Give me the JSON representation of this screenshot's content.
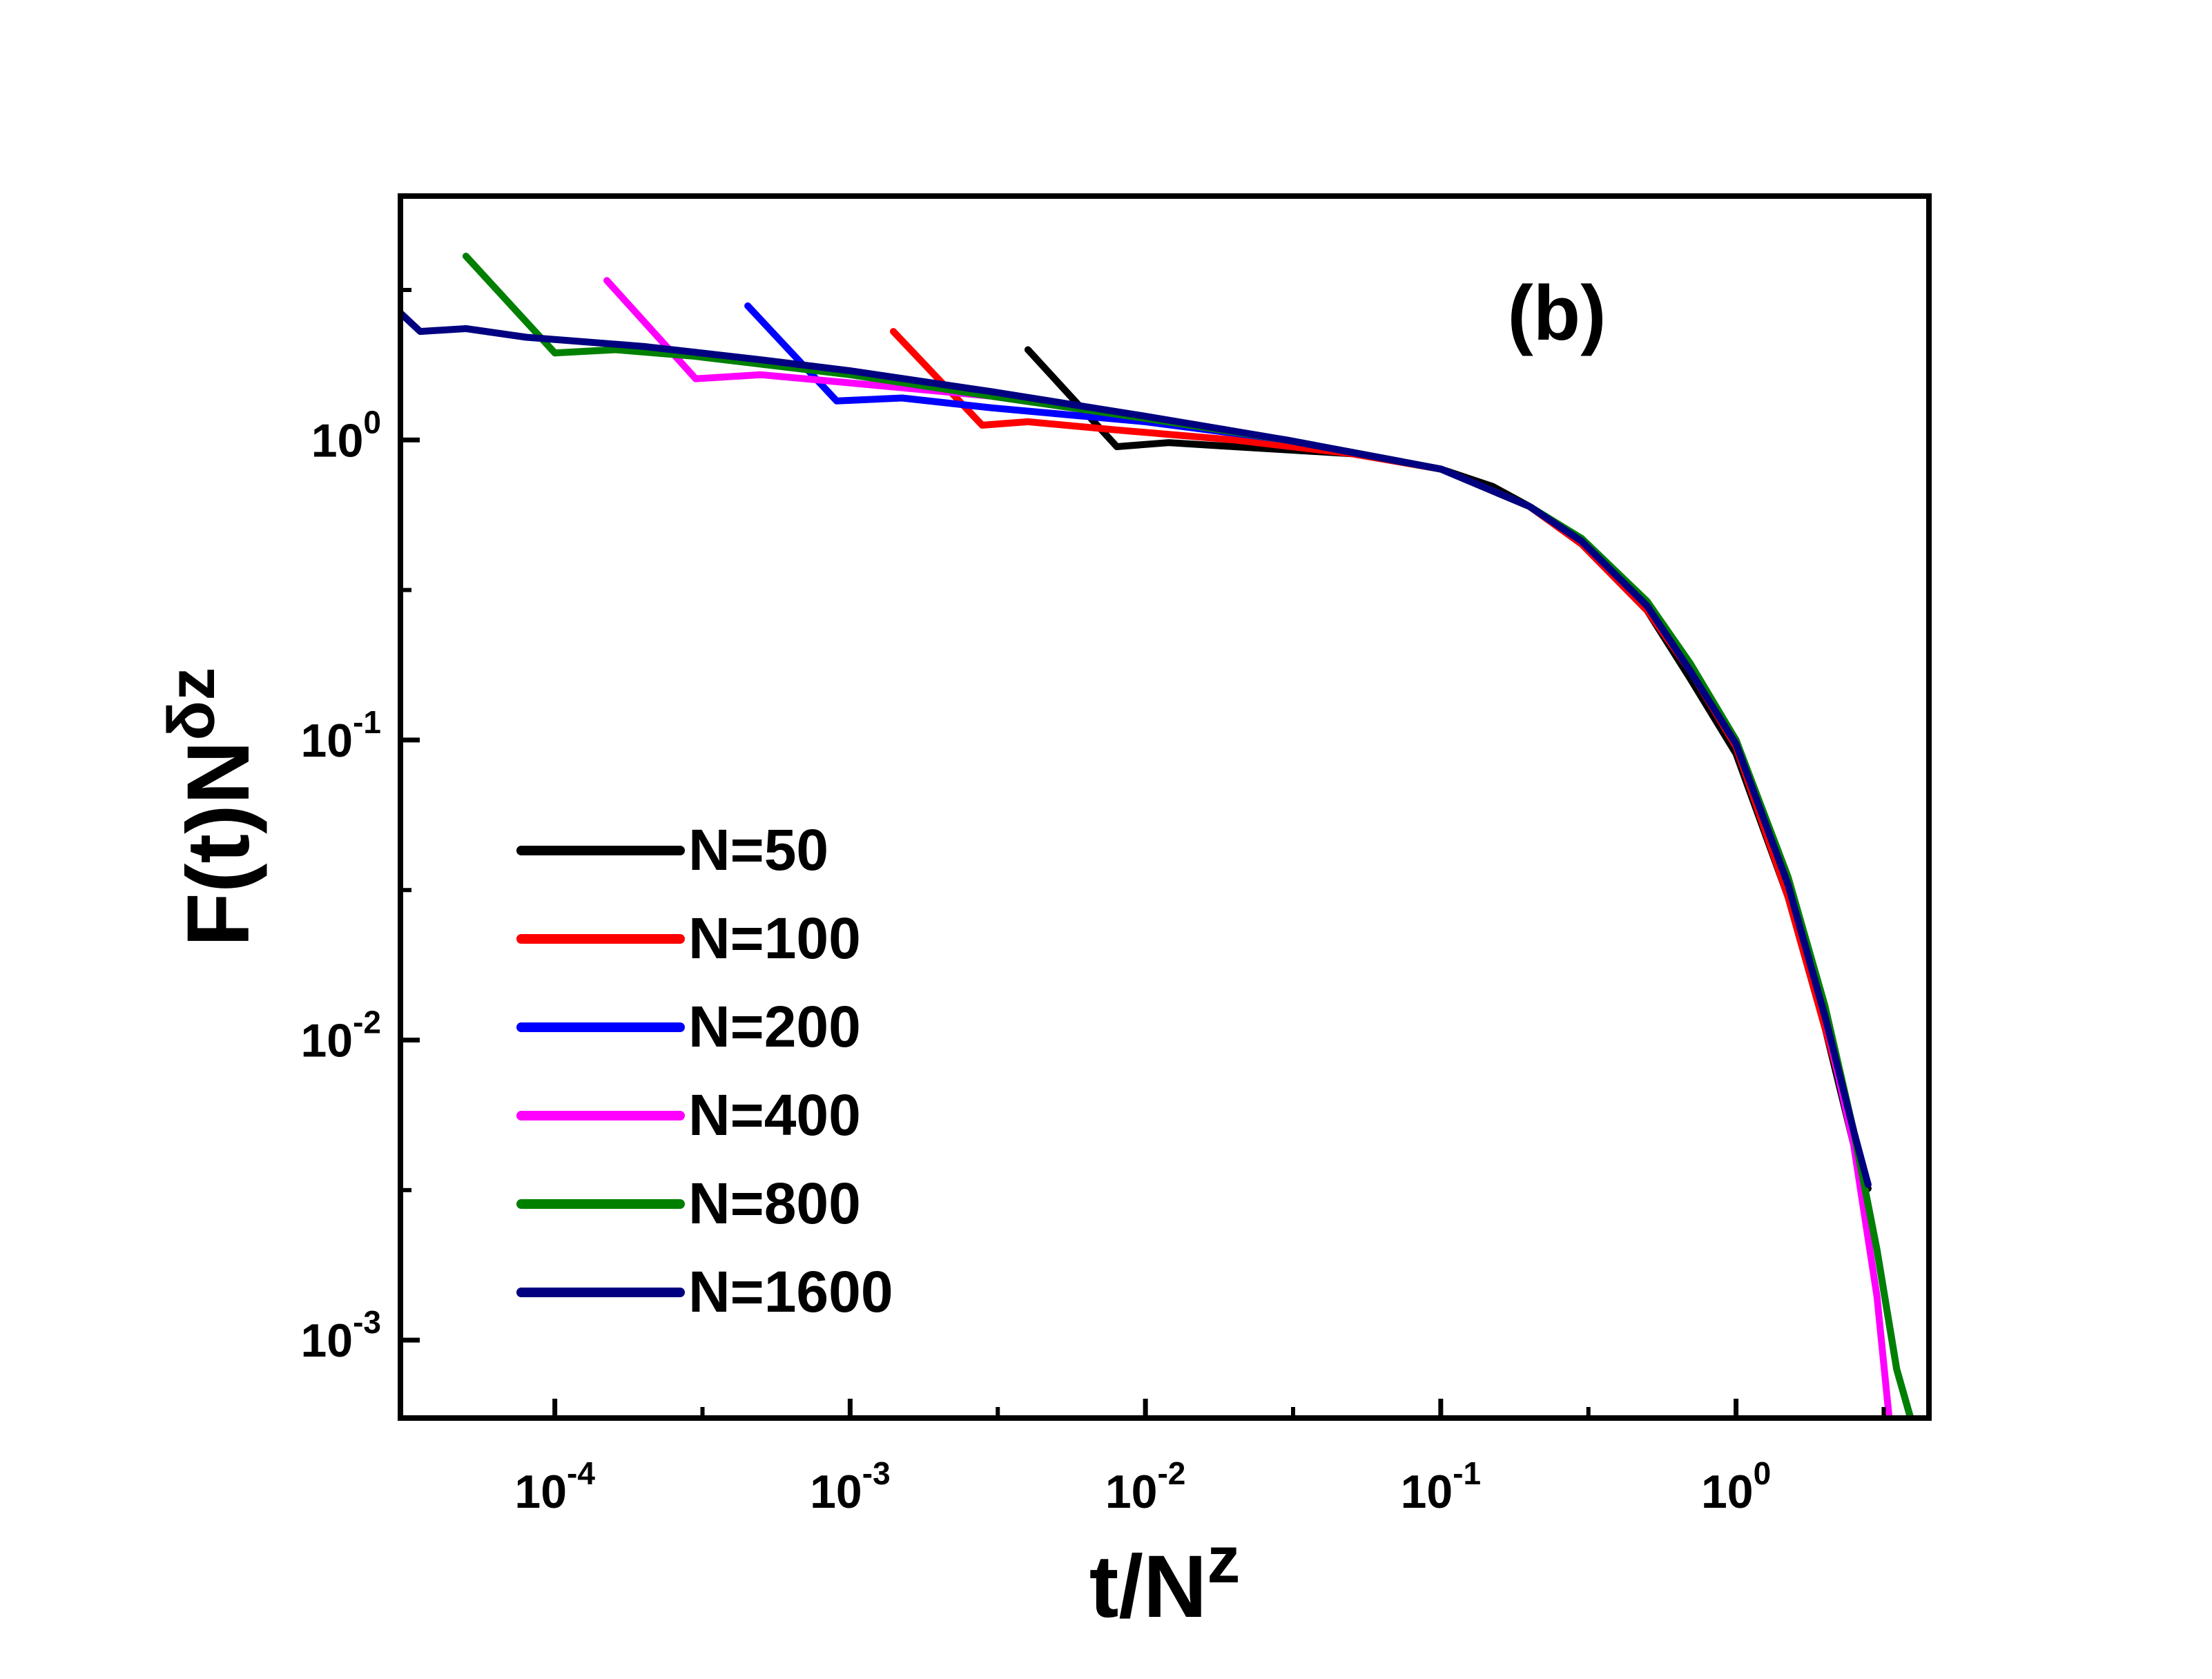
{
  "chart_data": {
    "type": "line",
    "title": "",
    "panel_label": "(b)",
    "xlabel": {
      "base": "t/N",
      "sup": "z"
    },
    "ylabel": {
      "base": "F(t)N",
      "sup": "δz"
    },
    "x_scale": "log",
    "y_scale": "log",
    "xlim": [
      3e-05,
      4.5
    ],
    "ylim": [
      0.00055,
      6.5
    ],
    "x_ticks": [
      {
        "value": 0.0001,
        "base": "10",
        "exp": "-4"
      },
      {
        "value": 0.001,
        "base": "10",
        "exp": "-3"
      },
      {
        "value": 0.01,
        "base": "10",
        "exp": "-2"
      },
      {
        "value": 0.1,
        "base": "10",
        "exp": "-1"
      },
      {
        "value": 1,
        "base": "10",
        "exp": "0"
      }
    ],
    "y_ticks": [
      {
        "value": 0.001,
        "base": "10",
        "exp": "-3"
      },
      {
        "value": 0.01,
        "base": "10",
        "exp": "-2"
      },
      {
        "value": 0.1,
        "base": "10",
        "exp": "-1"
      },
      {
        "value": 1,
        "base": "10",
        "exp": "0"
      }
    ],
    "grid": false,
    "legend_position": "lower-left",
    "series": [
      {
        "name": "N=50",
        "color": "#000000",
        "x": [
          0.004,
          0.008,
          0.012,
          0.02,
          0.05,
          0.1,
          0.15,
          0.2,
          0.3,
          0.5,
          0.7,
          1.0,
          1.5,
          2.0,
          2.5,
          2.8
        ],
        "y": [
          2.0,
          0.95,
          0.98,
          0.95,
          0.9,
          0.8,
          0.7,
          0.6,
          0.45,
          0.27,
          0.16,
          0.09,
          0.03,
          0.011,
          0.0045,
          0.0032
        ]
      },
      {
        "name": "N=100",
        "color": "#ff0000",
        "x": [
          0.0014,
          0.0028,
          0.004,
          0.008,
          0.02,
          0.05,
          0.1,
          0.2,
          0.3,
          0.5,
          0.7,
          1.0,
          1.5,
          2.0,
          2.5
        ],
        "y": [
          2.3,
          1.12,
          1.15,
          1.08,
          1.0,
          0.9,
          0.8,
          0.6,
          0.45,
          0.27,
          0.17,
          0.095,
          0.03,
          0.011,
          0.005
        ]
      },
      {
        "name": "N=200",
        "color": "#0000ff",
        "x": [
          0.00045,
          0.0009,
          0.0015,
          0.003,
          0.01,
          0.03,
          0.1,
          0.2,
          0.3,
          0.5,
          0.7,
          1.0,
          1.5,
          2.0,
          2.5,
          3.0,
          3.5,
          3.9
        ],
        "y": [
          2.8,
          1.35,
          1.38,
          1.28,
          1.15,
          1.0,
          0.8,
          0.6,
          0.46,
          0.28,
          0.17,
          0.098,
          0.033,
          0.012,
          0.005,
          0.002,
          0.0008,
          0.00055
        ]
      },
      {
        "name": "N=400",
        "color": "#ff00ff",
        "x": [
          0.00015,
          0.0003,
          0.0005,
          0.001,
          0.003,
          0.01,
          0.03,
          0.1,
          0.2,
          0.3,
          0.5,
          0.7,
          1.0,
          1.5,
          2.0,
          2.5,
          3.0,
          3.3
        ],
        "y": [
          3.4,
          1.6,
          1.65,
          1.55,
          1.4,
          1.18,
          1.0,
          0.8,
          0.6,
          0.46,
          0.28,
          0.17,
          0.1,
          0.034,
          0.012,
          0.0045,
          0.0014,
          0.00055
        ]
      },
      {
        "name": "N=800",
        "color": "#008000",
        "x": [
          5e-05,
          0.0001,
          0.00016,
          0.0003,
          0.001,
          0.003,
          0.01,
          0.03,
          0.1,
          0.2,
          0.3,
          0.5,
          0.7,
          1.0,
          1.5,
          2.0,
          2.5,
          3.0,
          3.5,
          3.9
        ],
        "y": [
          4.1,
          1.95,
          2.0,
          1.9,
          1.65,
          1.4,
          1.18,
          1.0,
          0.8,
          0.6,
          0.47,
          0.29,
          0.18,
          0.1,
          0.035,
          0.013,
          0.005,
          0.002,
          0.0008,
          0.00055
        ]
      },
      {
        "name": "N=1600",
        "color": "#000080",
        "x": [
          3e-05,
          3.5e-05,
          5e-05,
          8e-05,
          0.0002,
          0.0005,
          0.001,
          0.003,
          0.01,
          0.03,
          0.1,
          0.2,
          0.3,
          0.5,
          0.7,
          1.0,
          1.5,
          2.0,
          2.5,
          2.8
        ],
        "y": [
          2.65,
          2.3,
          2.35,
          2.2,
          2.05,
          1.85,
          1.7,
          1.45,
          1.2,
          1.0,
          0.8,
          0.6,
          0.46,
          0.28,
          0.17,
          0.097,
          0.033,
          0.012,
          0.005,
          0.0033
        ]
      }
    ]
  }
}
